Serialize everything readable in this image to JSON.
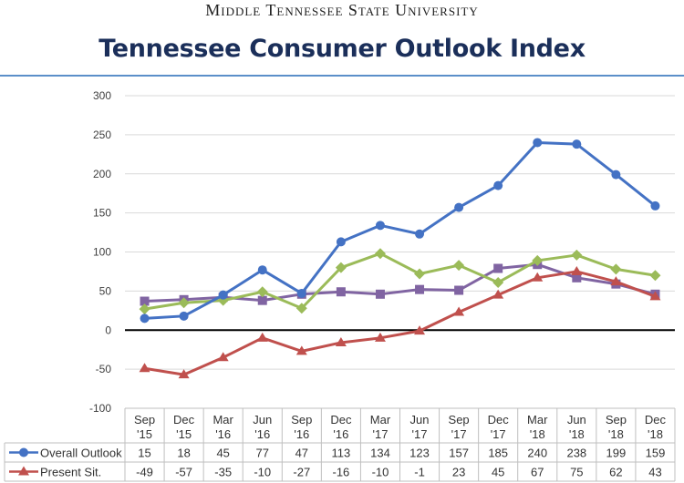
{
  "header": {
    "university": "Middle Tennessee State University",
    "title": "Tennessee Consumer Outlook Index"
  },
  "colors": {
    "overall": "#4472c4",
    "present": "#c0504d",
    "green": "#9bbb59",
    "purple": "#8064a2",
    "title": "#1b2f5a",
    "rule": "#5b8fc9"
  },
  "chart_data": {
    "type": "line",
    "title": "Tennessee Consumer Outlook Index",
    "xlabel": "",
    "ylabel": "",
    "ylim": [
      -100,
      300
    ],
    "yticks": [
      300,
      250,
      200,
      150,
      100,
      50,
      0,
      -50,
      -100
    ],
    "grid": true,
    "legend": "data-table-bottom",
    "categories": [
      [
        "Sep",
        "'15"
      ],
      [
        "Dec",
        "'15"
      ],
      [
        "Mar",
        "'16"
      ],
      [
        "Jun",
        "'16"
      ],
      [
        "Sep",
        "'16"
      ],
      [
        "Dec",
        "'16"
      ],
      [
        "Mar",
        "'17"
      ],
      [
        "Jun",
        "'17"
      ],
      [
        "Sep",
        "'17"
      ],
      [
        "Dec",
        "'17"
      ],
      [
        "Mar",
        "'18"
      ],
      [
        "Jun",
        "'18"
      ],
      [
        "Sep",
        "'18"
      ],
      [
        "Dec",
        "'18"
      ]
    ],
    "series": [
      {
        "name": "Overall Outlook",
        "marker": "circle",
        "color": "#4472c4",
        "in_table": true,
        "values": [
          15,
          18,
          45,
          77,
          47,
          113,
          134,
          123,
          157,
          185,
          240,
          238,
          199,
          159
        ]
      },
      {
        "name": "Present Sit.",
        "marker": "triangle",
        "color": "#c0504d",
        "in_table": true,
        "values": [
          -49,
          -57,
          -35,
          -10,
          -27,
          -16,
          -10,
          -1,
          23,
          45,
          67,
          75,
          62,
          43
        ]
      },
      {
        "name": "",
        "marker": "diamond",
        "color": "#9bbb59",
        "in_table": false,
        "values": [
          27,
          35,
          38,
          49,
          28,
          80,
          98,
          72,
          83,
          61,
          89,
          96,
          78,
          70
        ]
      },
      {
        "name": "",
        "marker": "square",
        "color": "#8064a2",
        "in_table": false,
        "values": [
          37,
          39,
          42,
          38,
          46,
          49,
          46,
          52,
          51,
          79,
          84,
          67,
          59,
          46
        ]
      }
    ]
  }
}
